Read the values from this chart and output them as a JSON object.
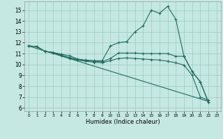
{
  "xlabel": "Humidex (Indice chaleur)",
  "bg_color": "#c5e8e2",
  "grid_color": "#a0cfc8",
  "line_color": "#1e6b5e",
  "xlim": [
    -0.5,
    23.5
  ],
  "ylim": [
    5.7,
    15.8
  ],
  "xticks": [
    0,
    1,
    2,
    3,
    4,
    5,
    6,
    7,
    8,
    9,
    10,
    11,
    12,
    13,
    14,
    15,
    16,
    17,
    18,
    19,
    20,
    21,
    22,
    23
  ],
  "yticks": [
    6,
    7,
    8,
    9,
    10,
    11,
    12,
    13,
    14,
    15
  ],
  "line1_x": [
    0,
    1,
    2,
    3,
    4,
    5,
    6,
    7,
    8,
    9,
    10,
    11,
    12,
    13,
    14,
    15,
    16,
    17,
    18,
    19,
    20,
    21,
    22
  ],
  "line1_y": [
    11.7,
    11.65,
    11.2,
    11.1,
    10.95,
    10.8,
    10.5,
    10.4,
    10.35,
    10.35,
    11.7,
    12.0,
    12.1,
    13.0,
    13.55,
    15.0,
    14.7,
    15.35,
    14.15,
    10.75,
    9.35,
    8.4,
    6.5
  ],
  "line2_x": [
    0,
    1,
    2,
    3,
    4,
    5,
    6,
    7,
    8,
    9,
    10,
    11,
    12,
    13,
    14,
    15,
    16,
    17,
    18,
    19,
    20,
    21,
    22
  ],
  "line2_y": [
    11.7,
    11.65,
    11.2,
    11.1,
    10.85,
    10.65,
    10.45,
    10.35,
    10.3,
    10.25,
    10.55,
    11.05,
    11.05,
    11.05,
    11.0,
    11.0,
    11.0,
    11.0,
    10.75,
    10.75,
    9.35,
    8.4,
    6.5
  ],
  "line3_x": [
    0,
    1,
    2,
    3,
    4,
    5,
    6,
    7,
    8,
    9,
    10,
    11,
    12,
    13,
    14,
    15,
    16,
    17,
    18,
    19,
    20,
    21,
    22
  ],
  "line3_y": [
    11.7,
    11.65,
    11.2,
    11.1,
    10.8,
    10.55,
    10.4,
    10.3,
    10.2,
    10.15,
    10.35,
    10.55,
    10.6,
    10.55,
    10.5,
    10.45,
    10.4,
    10.3,
    10.15,
    9.95,
    9.0,
    7.0,
    6.7
  ],
  "line4_x": [
    0,
    22
  ],
  "line4_y": [
    11.7,
    6.6
  ]
}
